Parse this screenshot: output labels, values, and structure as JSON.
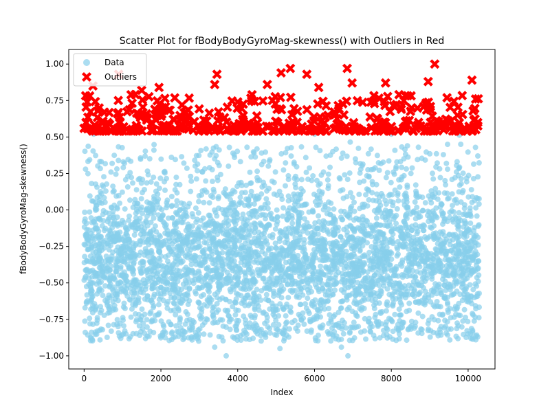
{
  "chart_data": {
    "type": "scatter",
    "title": "Scatter Plot for fBodyBodyGyroMag-skewness() with Outliers in Red",
    "xlabel": "Index",
    "ylabel": "fBodyBodyGyroMag-skewness()",
    "xlim": [
      -400,
      10700
    ],
    "ylim": [
      -1.09,
      1.1
    ],
    "x_ticks": [
      0,
      2000,
      4000,
      6000,
      8000,
      10000
    ],
    "y_ticks": [
      -1.0,
      -0.75,
      -0.5,
      -0.25,
      0.0,
      0.25,
      0.5,
      0.75,
      1.0
    ],
    "x_tick_labels": [
      "0",
      "2000",
      "4000",
      "6000",
      "8000",
      "10000"
    ],
    "y_tick_labels": [
      "−1.00",
      "−0.75",
      "−0.50",
      "−0.25",
      "0.00",
      "0.25",
      "0.50",
      "0.75",
      "1.00"
    ],
    "grid": false,
    "legend_position": "top-left",
    "series": [
      {
        "name": "Data",
        "marker": "circle",
        "color": "#87ceeb",
        "x_range": [
          0,
          10290
        ],
        "y_range": [
          -1.0,
          0.54
        ],
        "sample_points": [
          {
            "x": 3700,
            "y": -1.0
          },
          {
            "x": 6870,
            "y": -1.0
          },
          {
            "x": 3400,
            "y": -0.94
          },
          {
            "x": 5100,
            "y": -0.95
          },
          {
            "x": 6700,
            "y": -0.94
          },
          {
            "x": 10200,
            "y": -0.89
          },
          {
            "x": 1200,
            "y": -0.87
          },
          {
            "x": 2800,
            "y": -0.87
          },
          {
            "x": 4600,
            "y": -0.86
          },
          {
            "x": 7800,
            "y": -0.86
          },
          {
            "x": 9100,
            "y": -0.84
          },
          {
            "x": 250,
            "y": 0.52
          },
          {
            "x": 6000,
            "y": 0.52
          },
          {
            "x": 8000,
            "y": 0.52
          }
        ]
      },
      {
        "name": "Outliers",
        "marker": "X",
        "color": "#ff0000",
        "x_range": [
          0,
          10290
        ],
        "y_range": [
          0.54,
          1.0
        ],
        "sample_points": [
          {
            "x": 0,
            "y": 0.56
          },
          {
            "x": 50,
            "y": 0.6
          },
          {
            "x": 80,
            "y": 0.74
          },
          {
            "x": 230,
            "y": 0.85
          },
          {
            "x": 360,
            "y": 0.68
          },
          {
            "x": 530,
            "y": 0.67
          },
          {
            "x": 900,
            "y": 0.93
          },
          {
            "x": 890,
            "y": 0.75
          },
          {
            "x": 1030,
            "y": 0.57
          },
          {
            "x": 1500,
            "y": 0.82
          },
          {
            "x": 1950,
            "y": 0.84
          },
          {
            "x": 2550,
            "y": 0.72
          },
          {
            "x": 3460,
            "y": 0.93
          },
          {
            "x": 3400,
            "y": 0.86
          },
          {
            "x": 4130,
            "y": 0.62
          },
          {
            "x": 4650,
            "y": 0.54
          },
          {
            "x": 4770,
            "y": 0.86
          },
          {
            "x": 5130,
            "y": 0.94
          },
          {
            "x": 5370,
            "y": 0.97
          },
          {
            "x": 5800,
            "y": 0.93
          },
          {
            "x": 6110,
            "y": 0.84
          },
          {
            "x": 6850,
            "y": 0.97
          },
          {
            "x": 6980,
            "y": 0.87
          },
          {
            "x": 7170,
            "y": 0.55
          },
          {
            "x": 7620,
            "y": 0.55
          },
          {
            "x": 7850,
            "y": 0.87
          },
          {
            "x": 8200,
            "y": 0.79
          },
          {
            "x": 8680,
            "y": 0.58
          },
          {
            "x": 8960,
            "y": 0.88
          },
          {
            "x": 9130,
            "y": 1.0
          },
          {
            "x": 9560,
            "y": 0.61
          },
          {
            "x": 10100,
            "y": 0.89
          },
          {
            "x": 10200,
            "y": 0.55
          },
          {
            "x": 10250,
            "y": 0.6
          }
        ]
      }
    ]
  }
}
